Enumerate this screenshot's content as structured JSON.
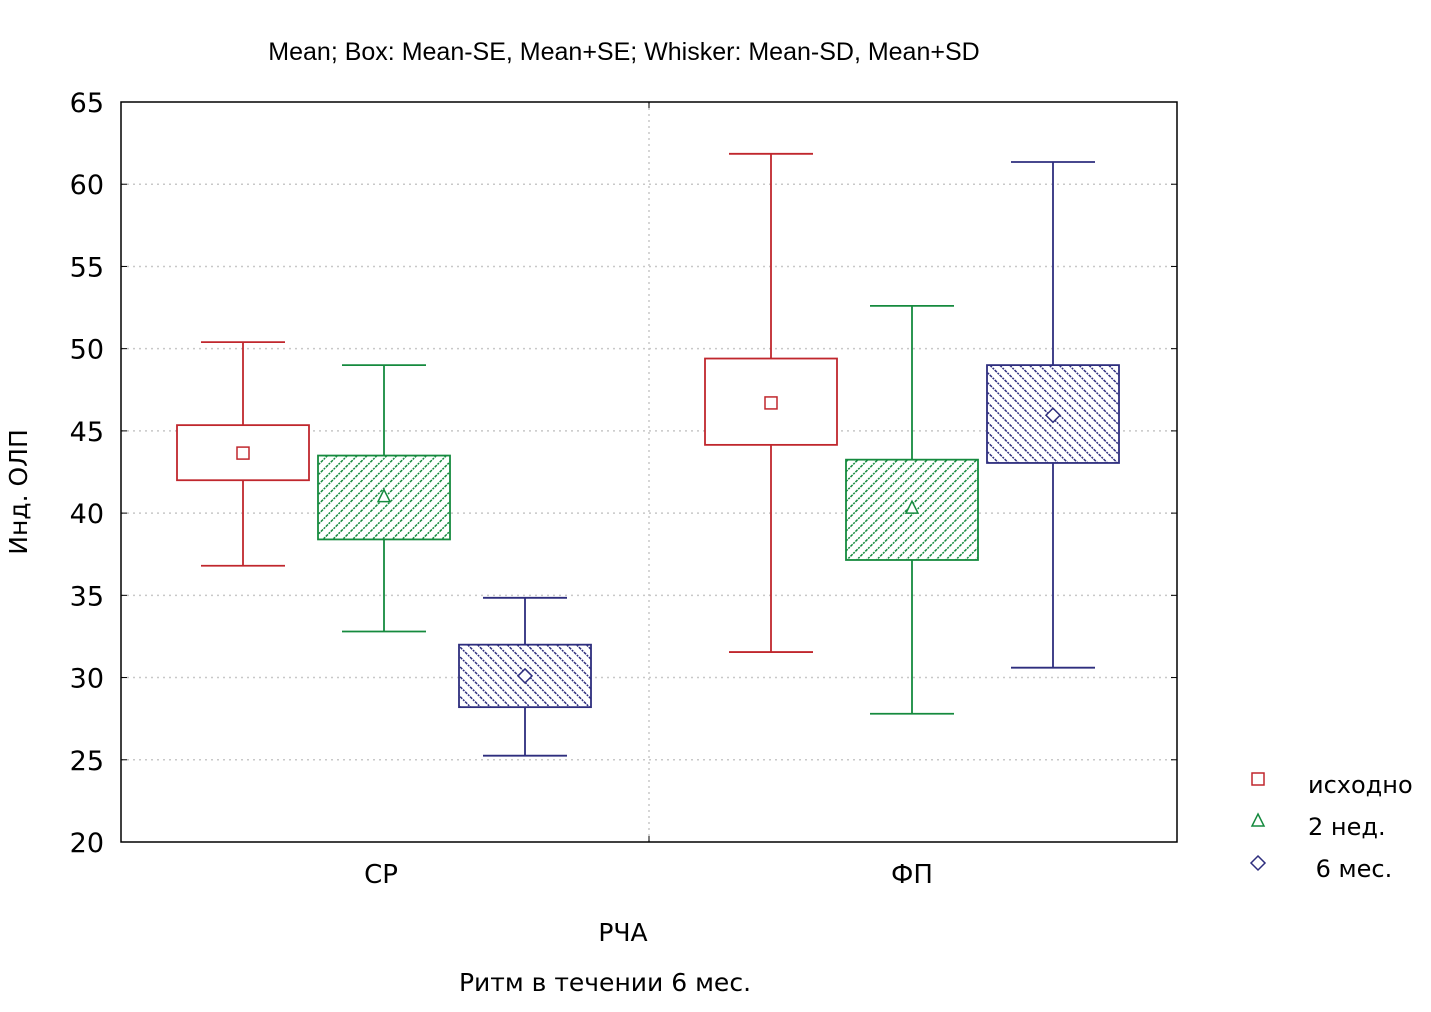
{
  "chart_data": {
    "type": "box",
    "title": "Mean; Box: Mean-SE, Mean+SE; Whisker: Mean-SD, Mean+SD",
    "xlabel": "РЧА",
    "xlabel2": "Ритм в  течении 6 мес.",
    "ylabel": "Инд. ОЛП",
    "ylim": [
      20,
      65
    ],
    "yticks": [
      20,
      25,
      30,
      35,
      40,
      45,
      50,
      55,
      60,
      65
    ],
    "ytick_labels": [
      "20",
      "25",
      "30",
      "35",
      "40",
      "45",
      "50",
      "55",
      "60",
      "65"
    ],
    "grid": true,
    "legend_position": "bottom-right-outside",
    "categories": [
      "CP",
      "ФП"
    ],
    "series": [
      {
        "name": "исходно",
        "color": "#c0272d",
        "marker": "square",
        "fill": "none",
        "values": [
          {
            "mean": 43.65,
            "box_low": 42.0,
            "box_high": 45.35,
            "whisker_low": 36.8,
            "whisker_high": 50.4
          },
          {
            "mean": 46.7,
            "box_low": 44.15,
            "box_high": 49.4,
            "whisker_low": 31.55,
            "whisker_high": 61.85
          }
        ]
      },
      {
        "name": "2 нед.",
        "color": "#158a3e",
        "marker": "triangle",
        "fill": "hatch-forward",
        "values": [
          {
            "mean": 41.0,
            "box_low": 38.4,
            "box_high": 43.5,
            "whisker_low": 32.8,
            "whisker_high": 49.0
          },
          {
            "mean": 40.3,
            "box_low": 37.15,
            "box_high": 43.25,
            "whisker_low": 27.8,
            "whisker_high": 52.6
          }
        ]
      },
      {
        "name": " 6 мес.",
        "color": "#2e2e7e",
        "marker": "diamond",
        "fill": "hatch-backward",
        "values": [
          {
            "mean": 30.1,
            "box_low": 28.2,
            "box_high": 32.0,
            "whisker_low": 25.25,
            "whisker_high": 34.85
          },
          {
            "mean": 45.95,
            "box_low": 43.05,
            "box_high": 49.0,
            "whisker_low": 30.6,
            "whisker_high": 61.35
          }
        ]
      }
    ]
  }
}
